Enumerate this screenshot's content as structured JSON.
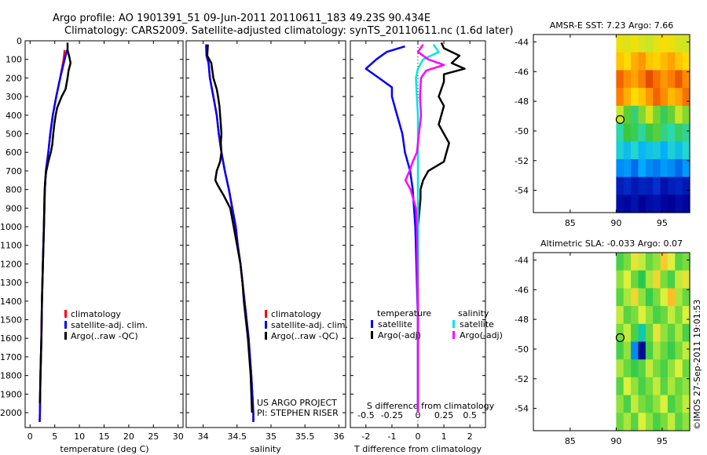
{
  "header": {
    "line1": "Argo profile: AO 1901391_51 09-Jun-2011 20110611_183 49.23S 90.434E",
    "line2": "Climatology: CARS2009. Satellite-adjusted climatology: synTS_20110611.nc (1.6d later)"
  },
  "colors": {
    "climatology": "#ff0000",
    "satellite": "#0000ff",
    "argo": "#000000",
    "sal_satellite": "#00e5e5",
    "sal_argo": "#ff00ff"
  },
  "depth_ticks": [
    0,
    100,
    200,
    300,
    400,
    500,
    600,
    700,
    800,
    900,
    1000,
    1100,
    1200,
    1300,
    1400,
    1500,
    1600,
    1700,
    1800,
    1900,
    2000
  ],
  "chart_data": [
    {
      "type": "line",
      "title": "",
      "xlabel": "temperature (deg C)",
      "ylabel": "",
      "xlim": [
        -1,
        31
      ],
      "ylim": [
        2080,
        0
      ],
      "xticks": [
        0,
        5,
        10,
        15,
        20,
        25,
        30
      ],
      "legend": [
        "climatology",
        "satellite-adj. clim.",
        "Argo(..raw -QC)"
      ],
      "series": [
        {
          "name": "climatology",
          "depth": [
            50,
            100,
            200,
            300,
            400,
            500,
            600,
            700,
            800,
            1000,
            1200,
            1400,
            1600,
            1800,
            2000,
            2050
          ],
          "values": [
            7.0,
            6.8,
            6.1,
            5.3,
            4.6,
            4.1,
            3.7,
            3.2,
            3.0,
            2.8,
            2.6,
            2.4,
            2.3,
            2.1,
            2.0,
            1.95
          ]
        },
        {
          "name": "satellite-adj. clim.",
          "depth": [
            50,
            100,
            200,
            300,
            400,
            500,
            600,
            700,
            800,
            1000,
            1200,
            1400,
            1600,
            1800,
            2000,
            2050
          ],
          "values": [
            7.5,
            7.0,
            6.1,
            5.3,
            4.6,
            4.1,
            3.7,
            3.2,
            3.0,
            2.8,
            2.6,
            2.4,
            2.3,
            2.1,
            2.0,
            1.95
          ]
        },
        {
          "name": "Argo(..raw -QC)",
          "depth": [
            10,
            50,
            80,
            120,
            160,
            200,
            260,
            300,
            360,
            400,
            450,
            500,
            560,
            600,
            650,
            700,
            740,
            780,
            850,
            1000,
            1200,
            1400,
            1600,
            1800,
            1950
          ],
          "values": [
            7.6,
            7.6,
            7.9,
            8.2,
            7.8,
            7.6,
            7.2,
            6.4,
            5.5,
            5.2,
            4.9,
            4.7,
            4.5,
            4.2,
            3.7,
            3.3,
            3.1,
            3.0,
            2.9,
            2.8,
            2.6,
            2.4,
            2.3,
            2.1,
            2.0
          ]
        }
      ]
    },
    {
      "type": "line",
      "title": "",
      "xlabel": "salinity",
      "ylabel": "",
      "xlim": [
        33.75,
        36.1
      ],
      "ylim": [
        2080,
        0
      ],
      "xticks": [
        34,
        34.5,
        35,
        35.5,
        36
      ],
      "legend": [
        "climatology",
        "satellite-adj. clim.",
        "Argo(..raw -QC)"
      ],
      "annotations": [
        "US ARGO PROJECT",
        "PI: STEPHEN RISER"
      ],
      "series": [
        {
          "name": "climatology",
          "depth": [
            20,
            80,
            120,
            200,
            300,
            400,
            500,
            600,
            700,
            800,
            900,
            1000,
            1100,
            1200,
            1300,
            1400,
            1500,
            1600,
            1800,
            2000,
            2050
          ],
          "values": [
            34.04,
            34.05,
            34.08,
            34.1,
            34.15,
            34.2,
            34.23,
            34.27,
            34.32,
            34.38,
            34.43,
            34.48,
            34.51,
            34.55,
            34.58,
            34.61,
            34.64,
            34.67,
            34.71,
            34.74,
            34.74
          ]
        },
        {
          "name": "satellite-adj. clim.",
          "depth": [
            20,
            80,
            120,
            200,
            300,
            400,
            500,
            600,
            700,
            800,
            900,
            1000,
            1100,
            1200,
            1300,
            1400,
            1500,
            1600,
            1800,
            2000,
            2050
          ],
          "values": [
            34.05,
            34.05,
            34.08,
            34.1,
            34.15,
            34.2,
            34.23,
            34.27,
            34.32,
            34.38,
            34.43,
            34.48,
            34.51,
            34.55,
            34.58,
            34.61,
            34.64,
            34.67,
            34.71,
            34.74,
            34.74
          ]
        },
        {
          "name": "Argo(..raw -QC)",
          "depth": [
            20,
            80,
            120,
            200,
            260,
            300,
            350,
            400,
            450,
            500,
            550,
            600,
            650,
            700,
            750,
            780,
            830,
            900,
            1000,
            1100,
            1200,
            1300,
            1400,
            1500,
            1600,
            1800,
            2000
          ],
          "values": [
            34.07,
            34.06,
            34.12,
            34.15,
            34.2,
            34.22,
            34.24,
            34.25,
            34.26,
            34.27,
            34.26,
            34.27,
            34.25,
            34.2,
            34.18,
            34.22,
            34.3,
            34.4,
            34.45,
            34.5,
            34.55,
            34.58,
            34.6,
            34.63,
            34.66,
            34.7,
            34.72
          ]
        }
      ]
    },
    {
      "type": "line",
      "title": "",
      "xlabel": "T difference from climatology",
      "xlabel2": "S difference from climatology",
      "ylabel": "",
      "xlim": [
        -2.6,
        2.6
      ],
      "xlim_salinity": [
        -0.65,
        0.65
      ],
      "ylim": [
        2080,
        0
      ],
      "xticks": [
        -2,
        -1,
        0,
        1,
        2
      ],
      "xticks_salinity": [
        -0.5,
        -0.25,
        0,
        0.25,
        0.5
      ],
      "legend": {
        "temperature_header": "temperature",
        "salinity_header": "salinity",
        "items": [
          "satellite",
          "Argo(-adj)",
          "satellite",
          "Argo(-adj)"
        ]
      },
      "series": [
        {
          "name": "temperature satellite",
          "depth": [
            30,
            60,
            100,
            150,
            200,
            250,
            300,
            400,
            500,
            600,
            700,
            800,
            1000,
            1500,
            2000
          ],
          "values": [
            -0.5,
            -1.2,
            -1.6,
            -2.0,
            -1.5,
            -1.0,
            -1.0,
            -0.8,
            -0.6,
            -0.5,
            -0.3,
            -0.2,
            -0.1,
            0,
            0
          ]
        },
        {
          "name": "temperature Argo(-adj)",
          "depth": [
            10,
            40,
            80,
            120,
            150,
            180,
            220,
            300,
            350,
            400,
            450,
            500,
            550,
            600,
            650,
            700,
            750,
            800,
            850,
            1000,
            1500,
            2000
          ],
          "values": [
            0.9,
            1.0,
            1.6,
            1.3,
            1.8,
            1.0,
            1.0,
            0.8,
            1.0,
            0.9,
            0.8,
            1.0,
            1.2,
            1.1,
            1.0,
            0.4,
            0.2,
            0.1,
            0.1,
            0,
            0,
            0
          ]
        },
        {
          "name": "salinity satellite",
          "depth": [
            20,
            60,
            100,
            150,
            200,
            300,
            400,
            500,
            600,
            700,
            800,
            1000,
            1500,
            2000
          ],
          "values": [
            0.15,
            0.2,
            0.05,
            0.0,
            -0.02,
            -0.01,
            0,
            0,
            0,
            0,
            0,
            0,
            0,
            0
          ]
        },
        {
          "name": "salinity Argo(-adj)",
          "depth": [
            20,
            60,
            100,
            130,
            160,
            200,
            300,
            400,
            500,
            600,
            650,
            700,
            750,
            800,
            900,
            1000,
            1500,
            2000
          ],
          "values": [
            0.05,
            0.0,
            0.1,
            0.25,
            0.08,
            0.03,
            0.02,
            0.03,
            0.01,
            -0.01,
            -0.05,
            -0.08,
            -0.12,
            -0.07,
            -0.02,
            -0.01,
            0,
            0
          ]
        }
      ]
    },
    {
      "type": "heatmap",
      "title": "AMSR-E SST: 7.23 Argo: 7.66",
      "xlim": [
        81,
        98
      ],
      "ylim": [
        -55.5,
        -43.5
      ],
      "xticks": [
        85,
        90,
        95
      ],
      "yticks": [
        -44,
        -46,
        -48,
        -50,
        -52,
        -54
      ],
      "data_extent_lon": [
        90,
        98
      ],
      "marker": {
        "lon": 90.434,
        "lat": -49.23
      },
      "values_degC": [
        [
          6.5,
          6.3,
          6.6,
          6.2,
          6.0,
          6.4,
          6.7,
          6.5,
          6.2,
          6.1
        ],
        [
          7.0,
          6.8,
          7.2,
          7.4,
          7.0,
          6.9,
          7.1,
          7.3,
          7.0,
          6.8
        ],
        [
          7.8,
          7.5,
          7.3,
          7.6,
          8.0,
          7.7,
          7.4,
          7.6,
          7.9,
          7.5
        ],
        [
          7.6,
          7.2,
          6.8,
          7.0,
          7.4,
          7.8,
          7.5,
          7.1,
          7.3,
          7.7
        ],
        [
          6.0,
          5.2,
          4.6,
          5.5,
          6.2,
          5.4,
          4.8,
          5.3,
          6.0,
          5.5
        ],
        [
          4.2,
          5.0,
          4.8,
          4.3,
          4.9,
          5.2,
          4.5,
          4.2,
          4.7,
          4.4
        ],
        [
          3.8,
          3.5,
          3.9,
          3.4,
          3.6,
          3.7,
          3.3,
          3.8,
          3.5,
          3.9
        ],
        [
          3.0,
          3.1,
          2.8,
          3.2,
          3.0,
          2.9,
          3.1,
          3.0,
          2.8,
          3.1
        ],
        [
          2.0,
          2.2,
          1.9,
          2.1,
          2.0,
          2.3,
          1.8,
          2.0,
          2.1,
          1.9
        ],
        [
          1.7,
          1.6,
          1.8,
          1.5,
          1.7,
          1.8,
          1.6,
          1.5,
          1.7,
          1.6
        ]
      ]
    },
    {
      "type": "heatmap",
      "title": "Altimetric SLA: -0.033 Argo: 0.07",
      "xlim": [
        81,
        98
      ],
      "ylim": [
        -55.5,
        -43.5
      ],
      "xticks": [
        85,
        90,
        95
      ],
      "yticks": [
        -44,
        -46,
        -48,
        -50,
        -52,
        -54
      ],
      "data_extent_lon": [
        90,
        98
      ],
      "marker": {
        "lon": 90.434,
        "lat": -49.23
      },
      "values_m": [
        [
          0.02,
          0.05,
          0.1,
          0.08,
          0.04,
          0.06,
          0.12,
          0.09,
          0.03,
          0.05
        ],
        [
          0.06,
          0.09,
          0.04,
          0.0,
          0.07,
          0.11,
          0.05,
          0.02,
          0.08,
          0.1
        ],
        [
          0.03,
          0.07,
          0.11,
          0.06,
          0.01,
          0.05,
          0.09,
          0.13,
          0.07,
          0.04
        ],
        [
          0.08,
          0.03,
          0.05,
          0.09,
          0.06,
          0.02,
          0.04,
          0.08,
          0.05,
          0.09
        ],
        [
          0.05,
          0.08,
          0.02,
          -0.03,
          0.04,
          0.1,
          0.06,
          0.03,
          0.07,
          0.02
        ],
        [
          0.02,
          0.06,
          -0.1,
          -0.28,
          0.02,
          0.07,
          0.04,
          0.01,
          0.05,
          0.08
        ],
        [
          0.07,
          0.04,
          0.01,
          0.03,
          0.08,
          0.05,
          0.02,
          0.06,
          0.09,
          0.04
        ],
        [
          0.03,
          0.09,
          0.06,
          0.02,
          0.05,
          0.08,
          0.03,
          0.07,
          0.04,
          0.06
        ],
        [
          0.06,
          0.02,
          0.08,
          0.05,
          0.03,
          0.06,
          0.09,
          0.02,
          0.05,
          0.08
        ],
        [
          0.04,
          0.07,
          0.03,
          0.09,
          0.06,
          0.02,
          0.05,
          0.08,
          0.03,
          0.06
        ]
      ]
    }
  ],
  "footer_stamp": "©IMOS 27-Sep-2011 19:01:53"
}
